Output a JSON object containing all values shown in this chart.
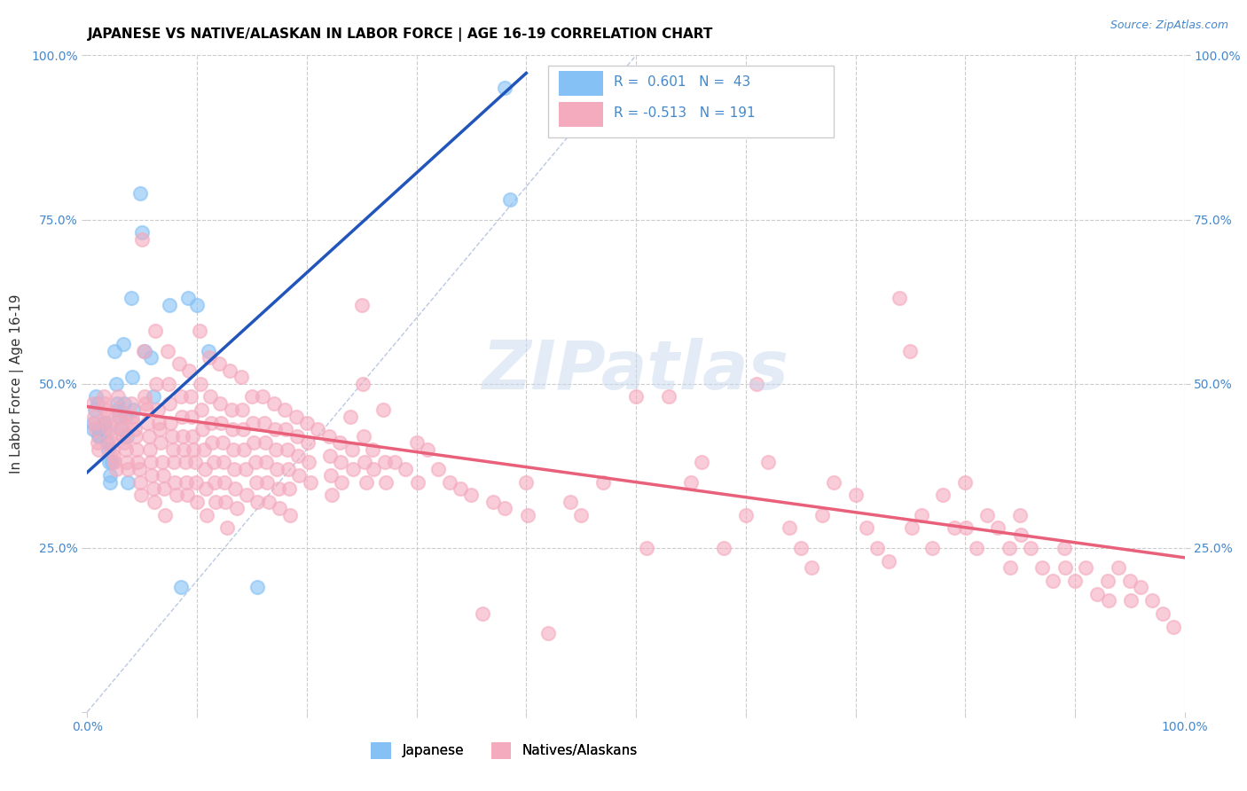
{
  "title": "JAPANESE VS NATIVE/ALASKAN IN LABOR FORCE | AGE 16-19 CORRELATION CHART",
  "source": "Source: ZipAtlas.com",
  "ylabel": "In Labor Force | Age 16-19",
  "xlim": [
    0,
    1.0
  ],
  "ylim": [
    0,
    1.0
  ],
  "watermark": "ZIPatlas",
  "japanese_color": "#85C1F5",
  "native_color": "#F4ABBE",
  "blue_line_color": "#2255BB",
  "pink_line_color": "#E8607A",
  "dashed_line_color": "#AABBDD",
  "grid_color": "#CCCCCC",
  "tick_color": "#4488CC",
  "japanese_points": [
    [
      0.005,
      0.43
    ],
    [
      0.005,
      0.44
    ],
    [
      0.007,
      0.46
    ],
    [
      0.008,
      0.48
    ],
    [
      0.009,
      0.47
    ],
    [
      0.01,
      0.43
    ],
    [
      0.01,
      0.42
    ],
    [
      0.011,
      0.42
    ],
    [
      0.015,
      0.44
    ],
    [
      0.016,
      0.44
    ],
    [
      0.017,
      0.43
    ],
    [
      0.018,
      0.41
    ],
    [
      0.019,
      0.4
    ],
    [
      0.02,
      0.38
    ],
    [
      0.021,
      0.36
    ],
    [
      0.021,
      0.35
    ],
    [
      0.022,
      0.38
    ],
    [
      0.025,
      0.55
    ],
    [
      0.026,
      0.5
    ],
    [
      0.027,
      0.47
    ],
    [
      0.028,
      0.46
    ],
    [
      0.029,
      0.45
    ],
    [
      0.03,
      0.43
    ],
    [
      0.033,
      0.56
    ],
    [
      0.034,
      0.47
    ],
    [
      0.035,
      0.45
    ],
    [
      0.036,
      0.42
    ],
    [
      0.037,
      0.35
    ],
    [
      0.04,
      0.63
    ],
    [
      0.041,
      0.51
    ],
    [
      0.042,
      0.46
    ],
    [
      0.048,
      0.79
    ],
    [
      0.05,
      0.73
    ],
    [
      0.052,
      0.55
    ],
    [
      0.058,
      0.54
    ],
    [
      0.06,
      0.48
    ],
    [
      0.075,
      0.62
    ],
    [
      0.085,
      0.19
    ],
    [
      0.092,
      0.63
    ],
    [
      0.1,
      0.62
    ],
    [
      0.11,
      0.55
    ],
    [
      0.155,
      0.19
    ],
    [
      0.38,
      0.95
    ],
    [
      0.385,
      0.78
    ]
  ],
  "native_points": [
    [
      0.005,
      0.47
    ],
    [
      0.006,
      0.45
    ],
    [
      0.007,
      0.44
    ],
    [
      0.008,
      0.43
    ],
    [
      0.009,
      0.41
    ],
    [
      0.01,
      0.4
    ],
    [
      0.015,
      0.48
    ],
    [
      0.016,
      0.47
    ],
    [
      0.017,
      0.46
    ],
    [
      0.018,
      0.45
    ],
    [
      0.019,
      0.44
    ],
    [
      0.02,
      0.43
    ],
    [
      0.021,
      0.42
    ],
    [
      0.022,
      0.41
    ],
    [
      0.023,
      0.4
    ],
    [
      0.024,
      0.39
    ],
    [
      0.025,
      0.38
    ],
    [
      0.026,
      0.37
    ],
    [
      0.028,
      0.48
    ],
    [
      0.029,
      0.46
    ],
    [
      0.03,
      0.45
    ],
    [
      0.031,
      0.44
    ],
    [
      0.032,
      0.43
    ],
    [
      0.033,
      0.42
    ],
    [
      0.034,
      0.41
    ],
    [
      0.035,
      0.4
    ],
    [
      0.036,
      0.38
    ],
    [
      0.037,
      0.37
    ],
    [
      0.04,
      0.47
    ],
    [
      0.041,
      0.45
    ],
    [
      0.042,
      0.44
    ],
    [
      0.043,
      0.43
    ],
    [
      0.044,
      0.42
    ],
    [
      0.045,
      0.4
    ],
    [
      0.046,
      0.38
    ],
    [
      0.047,
      0.37
    ],
    [
      0.048,
      0.35
    ],
    [
      0.049,
      0.33
    ],
    [
      0.05,
      0.72
    ],
    [
      0.051,
      0.55
    ],
    [
      0.052,
      0.48
    ],
    [
      0.053,
      0.47
    ],
    [
      0.054,
      0.46
    ],
    [
      0.055,
      0.44
    ],
    [
      0.056,
      0.42
    ],
    [
      0.057,
      0.4
    ],
    [
      0.058,
      0.38
    ],
    [
      0.059,
      0.36
    ],
    [
      0.06,
      0.34
    ],
    [
      0.061,
      0.32
    ],
    [
      0.062,
      0.58
    ],
    [
      0.063,
      0.5
    ],
    [
      0.064,
      0.46
    ],
    [
      0.065,
      0.44
    ],
    [
      0.066,
      0.43
    ],
    [
      0.067,
      0.41
    ],
    [
      0.068,
      0.38
    ],
    [
      0.069,
      0.36
    ],
    [
      0.07,
      0.34
    ],
    [
      0.071,
      0.3
    ],
    [
      0.073,
      0.55
    ],
    [
      0.074,
      0.5
    ],
    [
      0.075,
      0.47
    ],
    [
      0.076,
      0.44
    ],
    [
      0.077,
      0.42
    ],
    [
      0.078,
      0.4
    ],
    [
      0.079,
      0.38
    ],
    [
      0.08,
      0.35
    ],
    [
      0.081,
      0.33
    ],
    [
      0.084,
      0.53
    ],
    [
      0.085,
      0.48
    ],
    [
      0.086,
      0.45
    ],
    [
      0.087,
      0.42
    ],
    [
      0.088,
      0.4
    ],
    [
      0.089,
      0.38
    ],
    [
      0.09,
      0.35
    ],
    [
      0.091,
      0.33
    ],
    [
      0.093,
      0.52
    ],
    [
      0.094,
      0.48
    ],
    [
      0.095,
      0.45
    ],
    [
      0.096,
      0.42
    ],
    [
      0.097,
      0.4
    ],
    [
      0.098,
      0.38
    ],
    [
      0.099,
      0.35
    ],
    [
      0.1,
      0.32
    ],
    [
      0.102,
      0.58
    ],
    [
      0.103,
      0.5
    ],
    [
      0.104,
      0.46
    ],
    [
      0.105,
      0.43
    ],
    [
      0.106,
      0.4
    ],
    [
      0.107,
      0.37
    ],
    [
      0.108,
      0.34
    ],
    [
      0.109,
      0.3
    ],
    [
      0.111,
      0.54
    ],
    [
      0.112,
      0.48
    ],
    [
      0.113,
      0.44
    ],
    [
      0.114,
      0.41
    ],
    [
      0.115,
      0.38
    ],
    [
      0.116,
      0.35
    ],
    [
      0.117,
      0.32
    ],
    [
      0.12,
      0.53
    ],
    [
      0.121,
      0.47
    ],
    [
      0.122,
      0.44
    ],
    [
      0.123,
      0.41
    ],
    [
      0.124,
      0.38
    ],
    [
      0.125,
      0.35
    ],
    [
      0.126,
      0.32
    ],
    [
      0.127,
      0.28
    ],
    [
      0.13,
      0.52
    ],
    [
      0.131,
      0.46
    ],
    [
      0.132,
      0.43
    ],
    [
      0.133,
      0.4
    ],
    [
      0.134,
      0.37
    ],
    [
      0.135,
      0.34
    ],
    [
      0.136,
      0.31
    ],
    [
      0.14,
      0.51
    ],
    [
      0.141,
      0.46
    ],
    [
      0.142,
      0.43
    ],
    [
      0.143,
      0.4
    ],
    [
      0.144,
      0.37
    ],
    [
      0.145,
      0.33
    ],
    [
      0.15,
      0.48
    ],
    [
      0.151,
      0.44
    ],
    [
      0.152,
      0.41
    ],
    [
      0.153,
      0.38
    ],
    [
      0.154,
      0.35
    ],
    [
      0.155,
      0.32
    ],
    [
      0.16,
      0.48
    ],
    [
      0.161,
      0.44
    ],
    [
      0.162,
      0.41
    ],
    [
      0.163,
      0.38
    ],
    [
      0.164,
      0.35
    ],
    [
      0.165,
      0.32
    ],
    [
      0.17,
      0.47
    ],
    [
      0.171,
      0.43
    ],
    [
      0.172,
      0.4
    ],
    [
      0.173,
      0.37
    ],
    [
      0.174,
      0.34
    ],
    [
      0.175,
      0.31
    ],
    [
      0.18,
      0.46
    ],
    [
      0.181,
      0.43
    ],
    [
      0.182,
      0.4
    ],
    [
      0.183,
      0.37
    ],
    [
      0.184,
      0.34
    ],
    [
      0.185,
      0.3
    ],
    [
      0.19,
      0.45
    ],
    [
      0.191,
      0.42
    ],
    [
      0.192,
      0.39
    ],
    [
      0.193,
      0.36
    ],
    [
      0.2,
      0.44
    ],
    [
      0.201,
      0.41
    ],
    [
      0.202,
      0.38
    ],
    [
      0.203,
      0.35
    ],
    [
      0.21,
      0.43
    ],
    [
      0.22,
      0.42
    ],
    [
      0.221,
      0.39
    ],
    [
      0.222,
      0.36
    ],
    [
      0.223,
      0.33
    ],
    [
      0.23,
      0.41
    ],
    [
      0.231,
      0.38
    ],
    [
      0.232,
      0.35
    ],
    [
      0.24,
      0.45
    ],
    [
      0.241,
      0.4
    ],
    [
      0.242,
      0.37
    ],
    [
      0.25,
      0.62
    ],
    [
      0.251,
      0.5
    ],
    [
      0.252,
      0.42
    ],
    [
      0.253,
      0.38
    ],
    [
      0.254,
      0.35
    ],
    [
      0.26,
      0.4
    ],
    [
      0.261,
      0.37
    ],
    [
      0.27,
      0.46
    ],
    [
      0.271,
      0.38
    ],
    [
      0.272,
      0.35
    ],
    [
      0.28,
      0.38
    ],
    [
      0.29,
      0.37
    ],
    [
      0.3,
      0.41
    ],
    [
      0.301,
      0.35
    ],
    [
      0.31,
      0.4
    ],
    [
      0.32,
      0.37
    ],
    [
      0.33,
      0.35
    ],
    [
      0.34,
      0.34
    ],
    [
      0.35,
      0.33
    ],
    [
      0.36,
      0.15
    ],
    [
      0.37,
      0.32
    ],
    [
      0.38,
      0.31
    ],
    [
      0.4,
      0.35
    ],
    [
      0.401,
      0.3
    ],
    [
      0.42,
      0.12
    ],
    [
      0.44,
      0.32
    ],
    [
      0.45,
      0.3
    ],
    [
      0.47,
      0.35
    ],
    [
      0.5,
      0.48
    ],
    [
      0.51,
      0.25
    ],
    [
      0.53,
      0.48
    ],
    [
      0.55,
      0.35
    ],
    [
      0.56,
      0.38
    ],
    [
      0.58,
      0.25
    ],
    [
      0.6,
      0.3
    ],
    [
      0.61,
      0.5
    ],
    [
      0.62,
      0.38
    ],
    [
      0.64,
      0.28
    ],
    [
      0.65,
      0.25
    ],
    [
      0.66,
      0.22
    ],
    [
      0.67,
      0.3
    ],
    [
      0.68,
      0.35
    ],
    [
      0.7,
      0.33
    ],
    [
      0.71,
      0.28
    ],
    [
      0.72,
      0.25
    ],
    [
      0.73,
      0.23
    ],
    [
      0.74,
      0.63
    ],
    [
      0.75,
      0.55
    ],
    [
      0.751,
      0.28
    ],
    [
      0.76,
      0.3
    ],
    [
      0.77,
      0.25
    ],
    [
      0.78,
      0.33
    ],
    [
      0.79,
      0.28
    ],
    [
      0.8,
      0.35
    ],
    [
      0.801,
      0.28
    ],
    [
      0.81,
      0.25
    ],
    [
      0.82,
      0.3
    ],
    [
      0.83,
      0.28
    ],
    [
      0.84,
      0.25
    ],
    [
      0.841,
      0.22
    ],
    [
      0.85,
      0.3
    ],
    [
      0.851,
      0.27
    ],
    [
      0.86,
      0.25
    ],
    [
      0.87,
      0.22
    ],
    [
      0.88,
      0.2
    ],
    [
      0.89,
      0.25
    ],
    [
      0.891,
      0.22
    ],
    [
      0.9,
      0.2
    ],
    [
      0.91,
      0.22
    ],
    [
      0.92,
      0.18
    ],
    [
      0.93,
      0.2
    ],
    [
      0.931,
      0.17
    ],
    [
      0.94,
      0.22
    ],
    [
      0.95,
      0.2
    ],
    [
      0.951,
      0.17
    ],
    [
      0.96,
      0.19
    ],
    [
      0.97,
      0.17
    ],
    [
      0.98,
      0.15
    ],
    [
      0.99,
      0.13
    ]
  ],
  "jp_line_x0": 0.0,
  "jp_line_x1": 0.4,
  "na_line_x0": 0.0,
  "na_line_x1": 1.0,
  "jp_intercept": 0.365,
  "jp_slope": 1.52,
  "na_intercept": 0.465,
  "na_slope": -0.23
}
